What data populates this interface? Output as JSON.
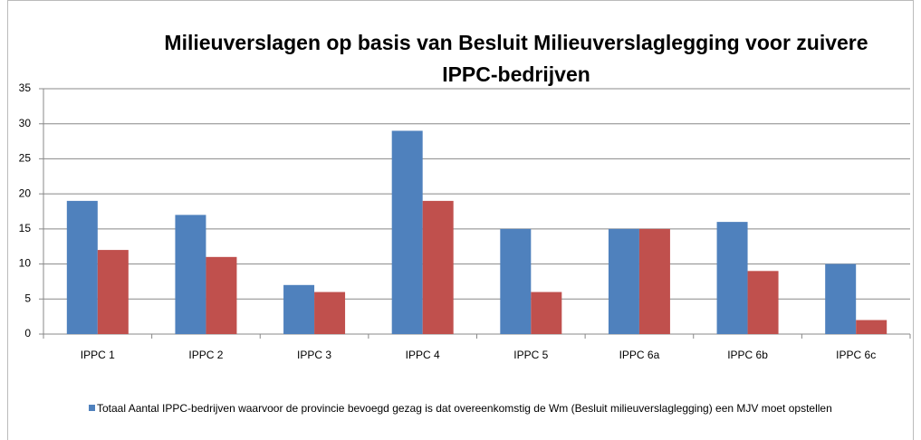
{
  "chart_data": {
    "type": "bar",
    "title": "Milieuverslagen op basis van Besluit Milieuverslaglegging voor zuivere IPPC-bedrijven",
    "categories": [
      "IPPC 1",
      "IPPC 2",
      "IPPC 3",
      "IPPC 4",
      "IPPC 5",
      "IPPC 6a",
      "IPPC 6b",
      "IPPC 6c"
    ],
    "series": [
      {
        "name": "Totaal Aantal IPPC-bedrijven waarvoor de provincie bevoegd gezag is dat overeenkomstig de Wm (Besluit  milieuverslaglegging) een MJV moet opstellen",
        "color": "#4f81bd",
        "values": [
          19,
          17,
          7,
          29,
          15,
          15,
          16,
          10
        ]
      },
      {
        "color": "#c0504d",
        "values": [
          12,
          11,
          6,
          19,
          6,
          15,
          9,
          2
        ]
      }
    ],
    "ylim": [
      0,
      35
    ],
    "yticks": [
      0,
      5,
      10,
      15,
      20,
      25,
      30,
      35
    ],
    "grid": true
  }
}
